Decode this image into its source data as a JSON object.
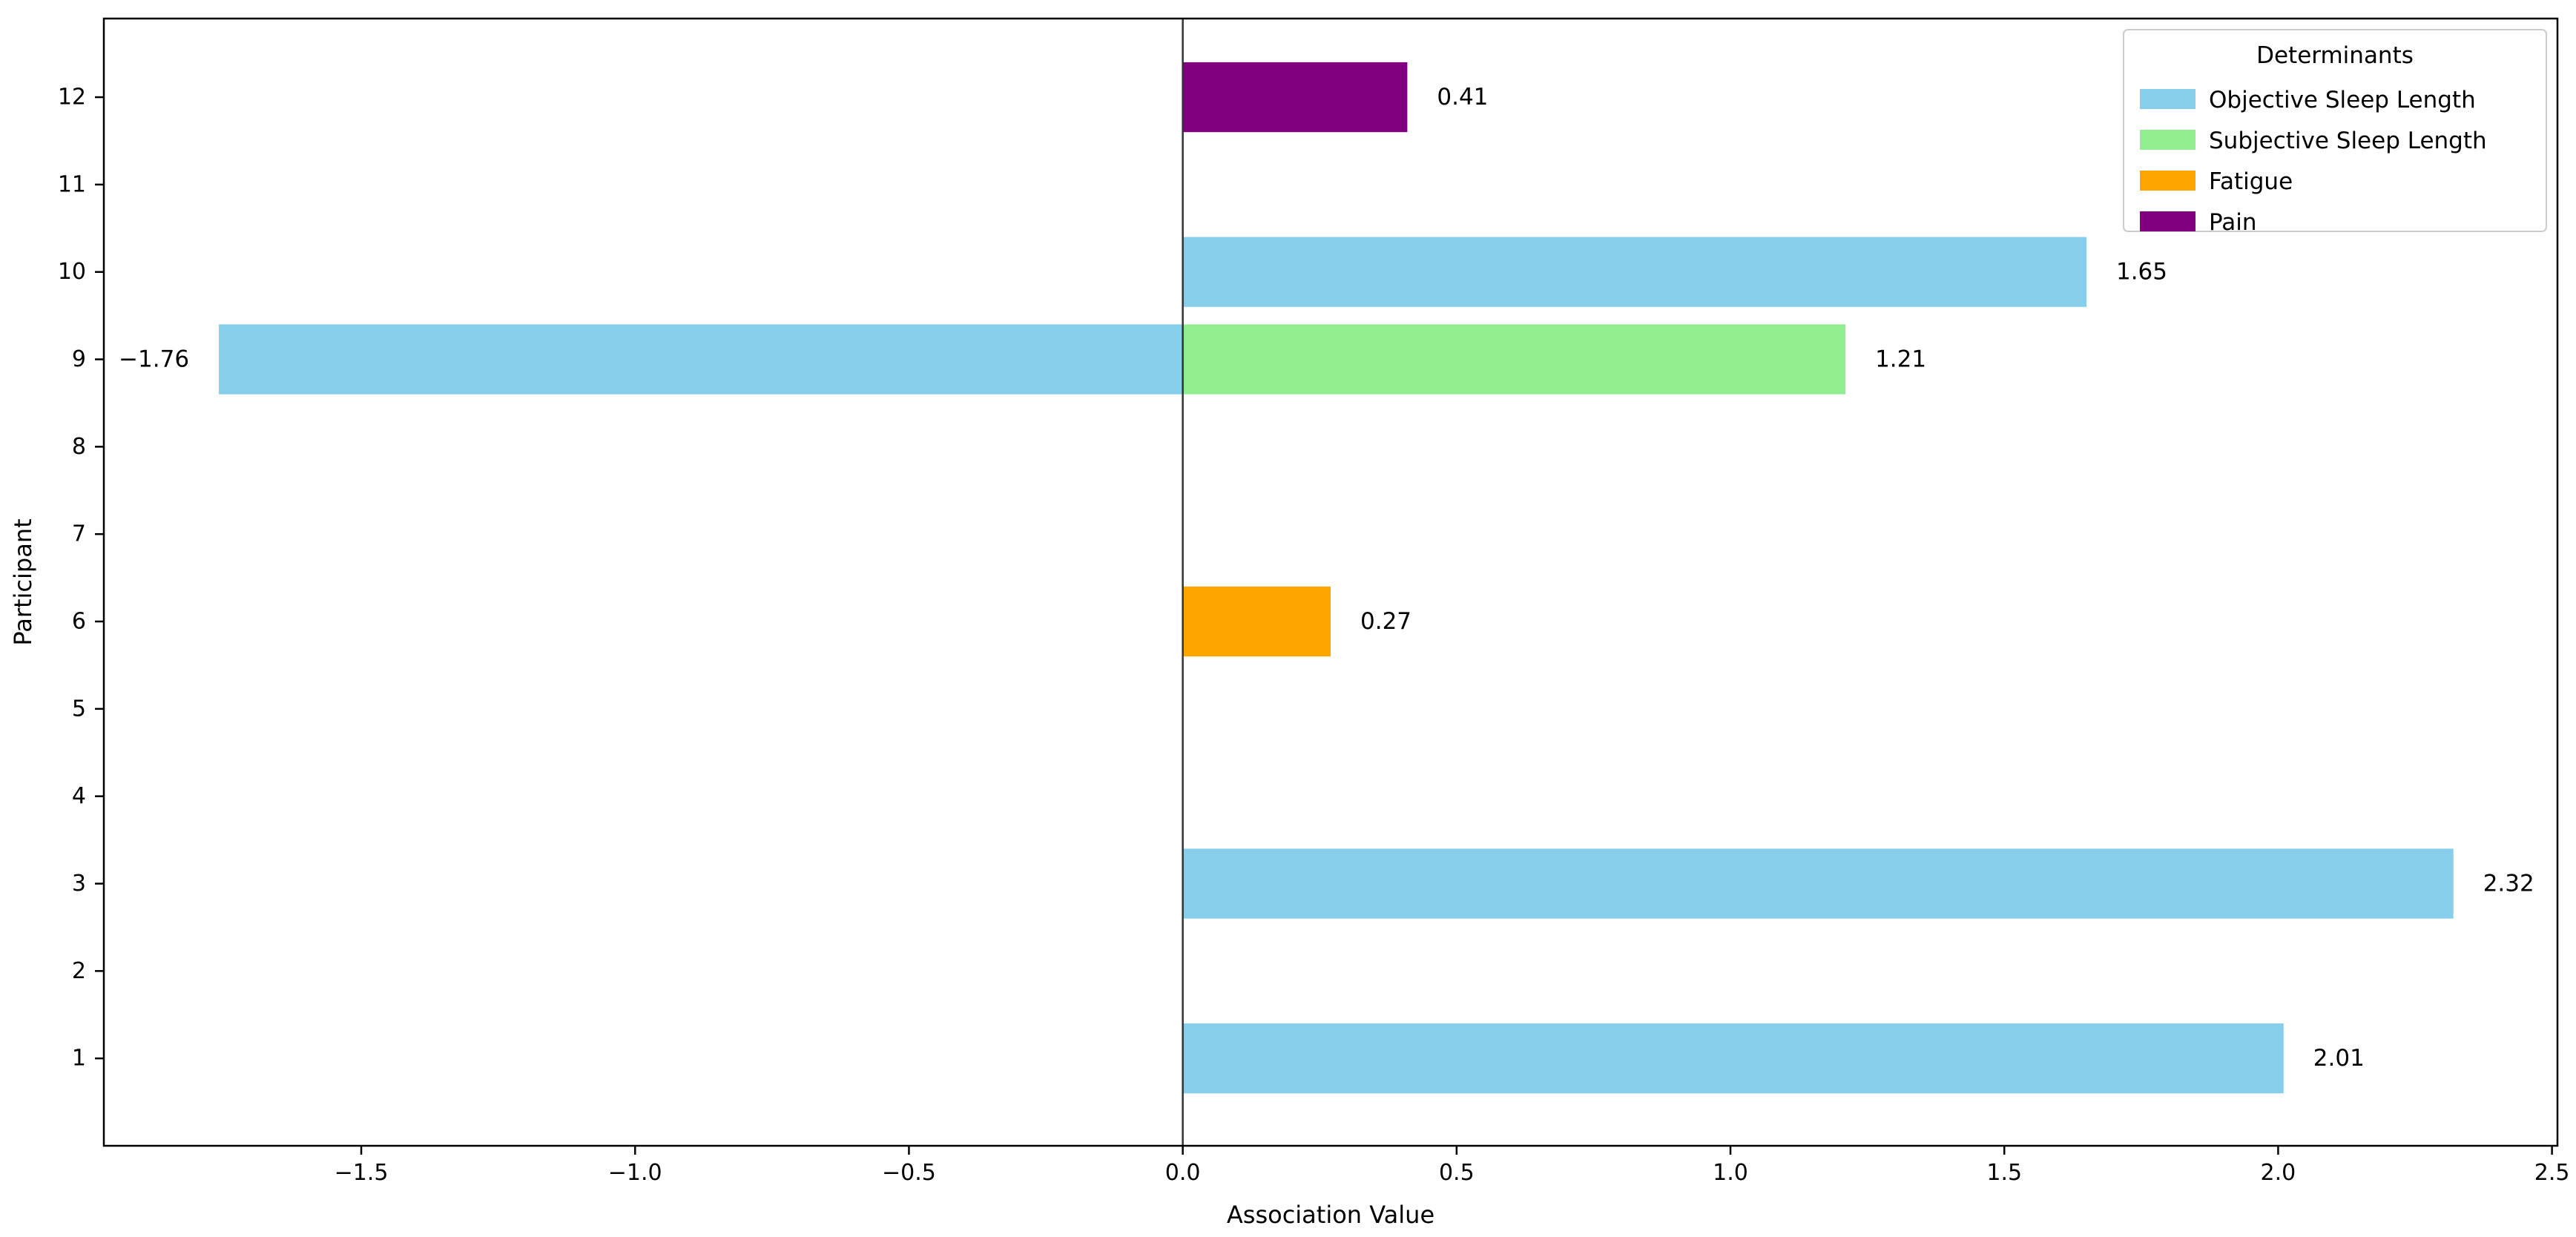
{
  "chart_data": {
    "type": "bar",
    "orientation": "horizontal",
    "title": "",
    "xlabel": "Association Value",
    "ylabel": "Participant",
    "xlim": [
      -1.97,
      2.51
    ],
    "ylim": [
      0,
      12.9
    ],
    "xticks": [
      -1.5,
      -1.0,
      -0.5,
      0.0,
      0.5,
      1.0,
      1.5,
      2.0,
      2.5
    ],
    "xtick_labels": [
      "−1.5",
      "−1.0",
      "−0.5",
      "0.0",
      "0.5",
      "1.0",
      "1.5",
      "2.0",
      "2.5"
    ],
    "yticks": [
      1,
      2,
      3,
      4,
      5,
      6,
      7,
      8,
      9,
      10,
      11,
      12
    ],
    "ytick_labels": [
      "1",
      "2",
      "3",
      "4",
      "5",
      "6",
      "7",
      "8",
      "9",
      "10",
      "11",
      "12"
    ],
    "grid": false,
    "zero_line": true,
    "legend": {
      "title": "Determinants",
      "placement": "top-right",
      "entries": [
        {
          "name": "Objective Sleep Length",
          "color": "#87ceeb"
        },
        {
          "name": "Subjective Sleep Length",
          "color": "#90ee90"
        },
        {
          "name": "Fatigue",
          "color": "#ffa500"
        },
        {
          "name": "Pain",
          "color": "#800080"
        }
      ]
    },
    "bars": [
      {
        "participant": 1,
        "value": 2.01,
        "label": "2.01",
        "determinant": "Objective Sleep Length"
      },
      {
        "participant": 3,
        "value": 2.32,
        "label": "2.32",
        "determinant": "Objective Sleep Length"
      },
      {
        "participant": 6,
        "value": 0.27,
        "label": "0.27",
        "determinant": "Fatigue"
      },
      {
        "participant": 9,
        "value": -1.76,
        "label": "−1.76",
        "determinant": "Objective Sleep Length"
      },
      {
        "participant": 9,
        "value": 1.21,
        "label": "1.21",
        "determinant": "Subjective Sleep Length"
      },
      {
        "participant": 10,
        "value": 1.65,
        "label": "1.65",
        "determinant": "Objective Sleep Length"
      },
      {
        "participant": 12,
        "value": 0.41,
        "label": "0.41",
        "determinant": "Pain"
      }
    ]
  }
}
